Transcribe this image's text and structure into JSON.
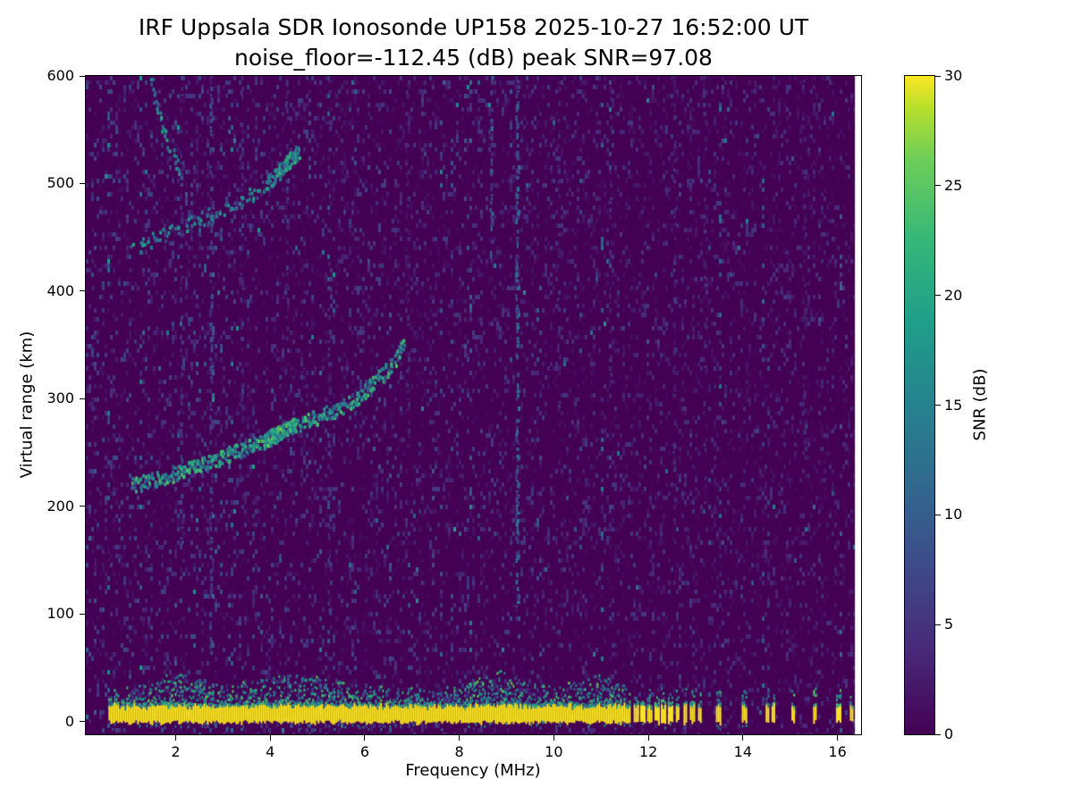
{
  "title": {
    "line1": "IRF Uppsala SDR Ionosonde UP158 2025-10-27 16:52:00  UT",
    "line2": "noise_floor=-112.45 (dB) peak SNR=97.08"
  },
  "chart_data": {
    "type": "heatmap",
    "xlabel": "Frequency (MHz)",
    "ylabel": "Virtual range (km)",
    "xlim": [
      0.1,
      16.5
    ],
    "ylim": [
      -12,
      600
    ],
    "xticks": [
      2,
      4,
      6,
      8,
      10,
      12,
      14,
      16
    ],
    "yticks": [
      0,
      100,
      200,
      300,
      400,
      500,
      600
    ],
    "colorbar": {
      "label": "SNR (dB)",
      "ticks": [
        0,
        5,
        10,
        15,
        20,
        25,
        30
      ],
      "vmin": 0,
      "vmax": 30,
      "colormap": "viridis"
    },
    "colors": {
      "background_low": "#440154",
      "peak": "#fde725",
      "figure_background": "#ffffff"
    },
    "noise_floor_db": -112.45,
    "peak_snr_db": 97.08,
    "data_freq_max": 16.37,
    "ground_band": {
      "y_center_km": 7,
      "half_width_km": 8,
      "freq_start": 0.58,
      "freq_end": 11.62,
      "snr_db": 30
    },
    "ground_pulses_mhz": [
      11.74,
      11.88,
      12.02,
      12.17,
      12.31,
      12.46,
      12.61,
      12.77,
      12.93,
      13.08,
      13.48,
      14.02,
      14.52,
      14.64,
      15.06,
      15.52,
      16.02,
      16.3
    ],
    "echo_traces": [
      {
        "name": "first-hop F trace",
        "points": [
          [
            1.05,
            220
          ],
          [
            1.6,
            227
          ],
          [
            2.1,
            233
          ],
          [
            2.6,
            241
          ],
          [
            3.1,
            249
          ],
          [
            3.6,
            258
          ],
          [
            4.0,
            265
          ],
          [
            4.3,
            272
          ],
          [
            4.5,
            277
          ],
          [
            5.1,
            286
          ],
          [
            5.5,
            293
          ],
          [
            5.8,
            300
          ],
          [
            6.1,
            313
          ],
          [
            6.35,
            323
          ],
          [
            6.55,
            334
          ],
          [
            6.7,
            343
          ],
          [
            6.82,
            352
          ]
        ],
        "snr_range": [
          8,
          22
        ],
        "density": 0.85
      },
      {
        "name": "first-hop dense knot",
        "points": [
          [
            3.85,
            262
          ],
          [
            4.5,
            277
          ]
        ],
        "snr_range": [
          10,
          24
        ],
        "density": 1.7
      },
      {
        "name": "second-hop trace",
        "points": [
          [
            1.0,
            440
          ],
          [
            1.4,
            447
          ],
          [
            1.8,
            455
          ],
          [
            2.2,
            463
          ],
          [
            2.6,
            470
          ],
          [
            3.0,
            477
          ],
          [
            3.4,
            486
          ],
          [
            3.8,
            497
          ],
          [
            4.1,
            508
          ],
          [
            4.35,
            519
          ],
          [
            4.55,
            530
          ]
        ],
        "snr_range": [
          6,
          18
        ],
        "density": 0.4
      },
      {
        "name": "second-hop dense knot",
        "points": [
          [
            3.9,
            500
          ],
          [
            4.6,
            532
          ]
        ],
        "snr_range": [
          9,
          20
        ],
        "density": 1.2
      },
      {
        "name": "low-frequency tail",
        "points": [
          [
            1.45,
            598
          ],
          [
            1.52,
            585
          ],
          [
            1.6,
            572
          ],
          [
            1.7,
            558
          ],
          [
            1.82,
            542
          ],
          [
            1.95,
            528
          ],
          [
            2.1,
            512
          ]
        ],
        "snr_range": [
          8,
          18
        ],
        "density": 0.7
      }
    ],
    "rfi_stripes": [
      {
        "freq": 2.12,
        "y_from": 150,
        "y_to": 600,
        "snr": 5,
        "density": 0.35
      },
      {
        "freq": 2.75,
        "y_from": 60,
        "y_to": 600,
        "snr": 6,
        "density": 0.4
      },
      {
        "freq": 3.4,
        "y_from": 200,
        "y_to": 600,
        "snr": 4,
        "density": 0.3
      },
      {
        "freq": 4.35,
        "y_from": 300,
        "y_to": 600,
        "snr": 4,
        "density": 0.3
      },
      {
        "freq": 5.25,
        "y_from": 100,
        "y_to": 600,
        "snr": 4,
        "density": 0.3
      },
      {
        "freq": 6.9,
        "y_from": 250,
        "y_to": 600,
        "snr": 3.5,
        "density": 0.25
      },
      {
        "freq": 8.68,
        "y_from": 430,
        "y_to": 600,
        "snr": 8,
        "density": 0.55
      },
      {
        "freq": 9.22,
        "y_from": 100,
        "y_to": 600,
        "snr": 9,
        "density": 0.6
      },
      {
        "freq": 10.1,
        "y_from": 250,
        "y_to": 600,
        "snr": 3.5,
        "density": 0.25
      },
      {
        "freq": 11.2,
        "y_from": 300,
        "y_to": 600,
        "snr": 3.5,
        "density": 0.25
      },
      {
        "freq": 12.55,
        "y_from": 150,
        "y_to": 600,
        "snr": 4,
        "density": 0.3
      },
      {
        "freq": 13.2,
        "y_from": 200,
        "y_to": 600,
        "snr": 3.5,
        "density": 0.25
      },
      {
        "freq": 15.3,
        "y_from": 250,
        "y_to": 600,
        "snr": 3,
        "density": 0.2
      }
    ]
  }
}
